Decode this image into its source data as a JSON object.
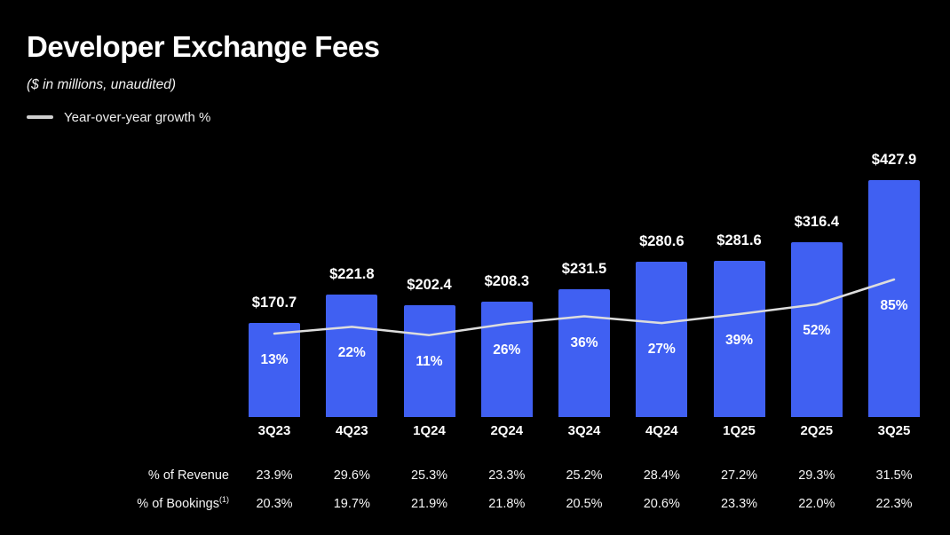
{
  "header": {
    "title": "Developer Exchange Fees",
    "subtitle": "($ in millions, unaudited)"
  },
  "legend": {
    "label": "Year-over-year growth %"
  },
  "chart_data": {
    "type": "bar",
    "title": "Developer Exchange Fees",
    "subtitle": "($ in millions, unaudited)",
    "categories": [
      "3Q23",
      "4Q23",
      "1Q24",
      "2Q24",
      "3Q24",
      "4Q24",
      "1Q25",
      "2Q25",
      "3Q25"
    ],
    "series": [
      {
        "name": "Developer Exchange Fees ($ in millions)",
        "type": "bar",
        "values": [
          170.7,
          221.8,
          202.4,
          208.3,
          231.5,
          280.6,
          281.6,
          316.4,
          427.9
        ],
        "labels": [
          "$170.7",
          "$221.8",
          "$202.4",
          "$208.3",
          "$231.5",
          "$280.6",
          "$281.6",
          "$316.4",
          "$427.9"
        ]
      },
      {
        "name": "Year-over-year growth %",
        "type": "line",
        "values": [
          13,
          22,
          11,
          26,
          36,
          27,
          39,
          52,
          85
        ],
        "labels": [
          "13%",
          "22%",
          "11%",
          "26%",
          "36%",
          "27%",
          "39%",
          "52%",
          "85%"
        ]
      }
    ],
    "ylim": [
      0,
      450
    ],
    "grid": false,
    "legend_position": "top-left",
    "colors": {
      "bar": "#4060F2",
      "line": "#dddddd",
      "background": "#000000",
      "text": "#ffffff"
    }
  },
  "table": {
    "rows": [
      {
        "label": "% of Revenue",
        "sup": "",
        "values": [
          "23.9%",
          "29.6%",
          "25.3%",
          "23.3%",
          "25.2%",
          "28.4%",
          "27.2%",
          "29.3%",
          "31.5%"
        ]
      },
      {
        "label": "% of Bookings",
        "sup": "(1)",
        "values": [
          "20.3%",
          "19.7%",
          "21.9%",
          "21.8%",
          "20.5%",
          "20.6%",
          "23.3%",
          "22.0%",
          "22.3%"
        ]
      }
    ]
  }
}
